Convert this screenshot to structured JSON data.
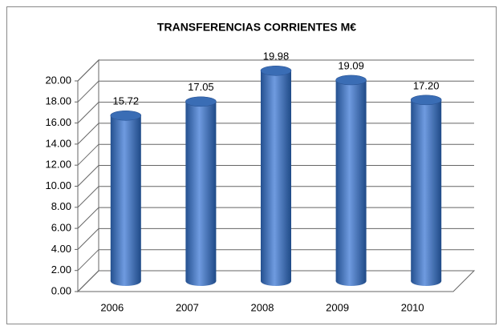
{
  "chart_data": {
    "type": "bar3d",
    "title": "TRANSFERENCIAS CORRIENTES M€",
    "categories": [
      "2006",
      "2007",
      "2008",
      "2009",
      "2010"
    ],
    "values": [
      15.72,
      17.05,
      19.98,
      19.09,
      17.2
    ],
    "value_labels": [
      "15.72",
      "17.05",
      "19.98",
      "19.09",
      "17.20"
    ],
    "color": "#3a6db5",
    "ylim": [
      0,
      20
    ],
    "yticks": [
      {
        "value": 0,
        "label": "0.00"
      },
      {
        "value": 2,
        "label": "2.00"
      },
      {
        "value": 4,
        "label": "4.00"
      },
      {
        "value": 6,
        "label": "6.00"
      },
      {
        "value": 8,
        "label": "8.00"
      },
      {
        "value": 10,
        "label": "10.00"
      },
      {
        "value": 12,
        "label": "12.00"
      },
      {
        "value": 14,
        "label": "14.00"
      },
      {
        "value": 16,
        "label": "16.00"
      },
      {
        "value": 18,
        "label": "18.00"
      },
      {
        "value": 20,
        "label": "20.00"
      }
    ],
    "grid": true
  }
}
